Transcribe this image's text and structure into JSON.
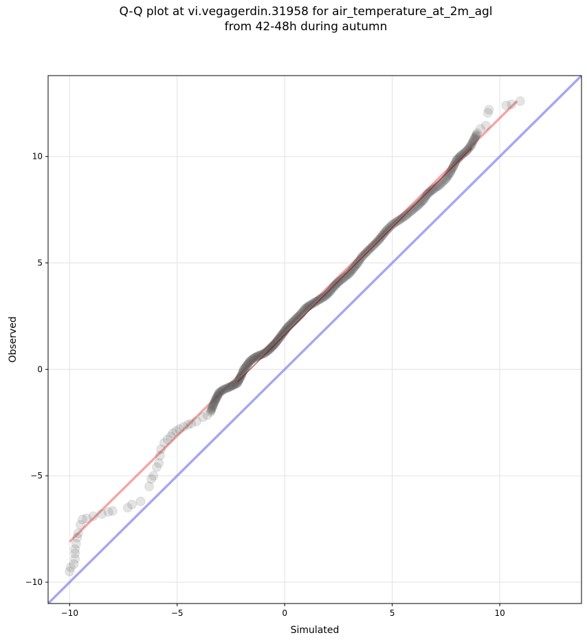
{
  "chart_data": {
    "type": "scatter",
    "title_line1": "Q-Q plot at vi.vegagerdin.31958 for air_temperature_at_2m_agl",
    "title_line2": "from 42-48h during autumn",
    "xlabel": "Simulated",
    "ylabel": "Observed",
    "xlim": [
      -11,
      13.8
    ],
    "ylim": [
      -11,
      13.8
    ],
    "xticks": [
      -10,
      -5,
      0,
      5,
      10
    ],
    "yticks": [
      -10,
      -5,
      0,
      5,
      10
    ],
    "xtick_labels": [
      "−10",
      "−5",
      "0",
      "5",
      "10"
    ],
    "ytick_labels": [
      "−10",
      "−5",
      "0",
      "5",
      "10"
    ],
    "grid": true,
    "colors": {
      "points": "#555555",
      "fit_line": "#f08080",
      "fit_core": "#8b0000",
      "identity_line": "#8888ee"
    },
    "quantile_points": [
      [
        -10.0,
        -9.5
      ],
      [
        -9.95,
        -9.3
      ],
      [
        -9.8,
        -9.15
      ],
      [
        -9.75,
        -8.9
      ],
      [
        -9.75,
        -8.65
      ],
      [
        -9.75,
        -8.45
      ],
      [
        -9.7,
        -8.2
      ],
      [
        -9.65,
        -7.9
      ],
      [
        -9.6,
        -7.7
      ],
      [
        -9.5,
        -7.3
      ],
      [
        -9.4,
        -7.05
      ],
      [
        -9.2,
        -7.0
      ],
      [
        -8.9,
        -6.9
      ],
      [
        -8.5,
        -6.8
      ],
      [
        -8.2,
        -6.7
      ],
      [
        -8.0,
        -6.65
      ],
      [
        -7.3,
        -6.5
      ],
      [
        -7.1,
        -6.35
      ],
      [
        -6.7,
        -6.2
      ],
      [
        -6.3,
        -5.5
      ],
      [
        -6.2,
        -5.15
      ],
      [
        -6.1,
        -5.0
      ],
      [
        -5.95,
        -4.6
      ],
      [
        -5.85,
        -4.4
      ],
      [
        -5.8,
        -4.05
      ],
      [
        -5.75,
        -3.75
      ],
      [
        -5.6,
        -3.45
      ],
      [
        -5.45,
        -3.3
      ],
      [
        -5.3,
        -3.15
      ],
      [
        -5.2,
        -3.0
      ],
      [
        -5.05,
        -2.9
      ],
      [
        -4.9,
        -2.8
      ],
      [
        -4.7,
        -2.7
      ],
      [
        -4.5,
        -2.6
      ],
      [
        -4.35,
        -2.55
      ],
      [
        -4.1,
        -2.45
      ],
      [
        -3.8,
        -2.25
      ],
      [
        -3.6,
        -2.15
      ],
      [
        -3.45,
        -2.0
      ],
      [
        -3.35,
        -1.75
      ],
      [
        -3.25,
        -1.5
      ],
      [
        -3.15,
        -1.3
      ],
      [
        -3.05,
        -1.1
      ],
      [
        -2.85,
        -0.95
      ],
      [
        -2.6,
        -0.85
      ],
      [
        -2.4,
        -0.75
      ],
      [
        -2.2,
        -0.65
      ],
      [
        -2.1,
        -0.45
      ],
      [
        -2.0,
        -0.25
      ],
      [
        -1.9,
        0.0
      ],
      [
        -1.75,
        0.2
      ],
      [
        -1.6,
        0.4
      ],
      [
        -1.4,
        0.55
      ],
      [
        -1.2,
        0.65
      ],
      [
        -0.95,
        0.75
      ],
      [
        -0.75,
        0.9
      ],
      [
        -0.6,
        1.05
      ],
      [
        -0.45,
        1.2
      ],
      [
        -0.3,
        1.4
      ],
      [
        -0.15,
        1.6
      ],
      [
        0.0,
        1.8
      ],
      [
        0.15,
        2.0
      ],
      [
        0.35,
        2.2
      ],
      [
        0.55,
        2.4
      ],
      [
        0.75,
        2.6
      ],
      [
        0.95,
        2.85
      ],
      [
        1.15,
        3.0
      ],
      [
        1.4,
        3.15
      ],
      [
        1.65,
        3.3
      ],
      [
        1.9,
        3.45
      ],
      [
        2.1,
        3.65
      ],
      [
        2.3,
        3.9
      ],
      [
        2.5,
        4.1
      ],
      [
        2.75,
        4.3
      ],
      [
        3.0,
        4.5
      ],
      [
        3.2,
        4.75
      ],
      [
        3.4,
        5.0
      ],
      [
        3.6,
        5.3
      ],
      [
        3.85,
        5.55
      ],
      [
        4.1,
        5.8
      ],
      [
        4.35,
        6.05
      ],
      [
        4.55,
        6.3
      ],
      [
        4.75,
        6.55
      ],
      [
        5.0,
        6.8
      ],
      [
        5.3,
        7.0
      ],
      [
        5.6,
        7.2
      ],
      [
        5.9,
        7.45
      ],
      [
        6.2,
        7.7
      ],
      [
        6.45,
        7.95
      ],
      [
        6.65,
        8.25
      ],
      [
        6.9,
        8.45
      ],
      [
        7.2,
        8.65
      ],
      [
        7.5,
        8.95
      ],
      [
        7.7,
        9.25
      ],
      [
        7.85,
        9.55
      ],
      [
        8.0,
        9.85
      ],
      [
        8.2,
        10.05
      ],
      [
        8.45,
        10.25
      ],
      [
        8.65,
        10.5
      ],
      [
        8.8,
        10.8
      ],
      [
        8.95,
        11.1
      ],
      [
        9.1,
        11.3
      ],
      [
        9.35,
        11.45
      ],
      [
        9.45,
        12.05
      ],
      [
        9.5,
        12.2
      ],
      [
        10.3,
        12.4
      ],
      [
        10.55,
        12.45
      ],
      [
        10.95,
        12.6
      ]
    ],
    "fit_line": [
      [
        -10.0,
        -8.1
      ],
      [
        10.8,
        12.6
      ]
    ],
    "identity_line": [
      [
        -11,
        -11
      ],
      [
        13.8,
        13.8
      ]
    ]
  }
}
